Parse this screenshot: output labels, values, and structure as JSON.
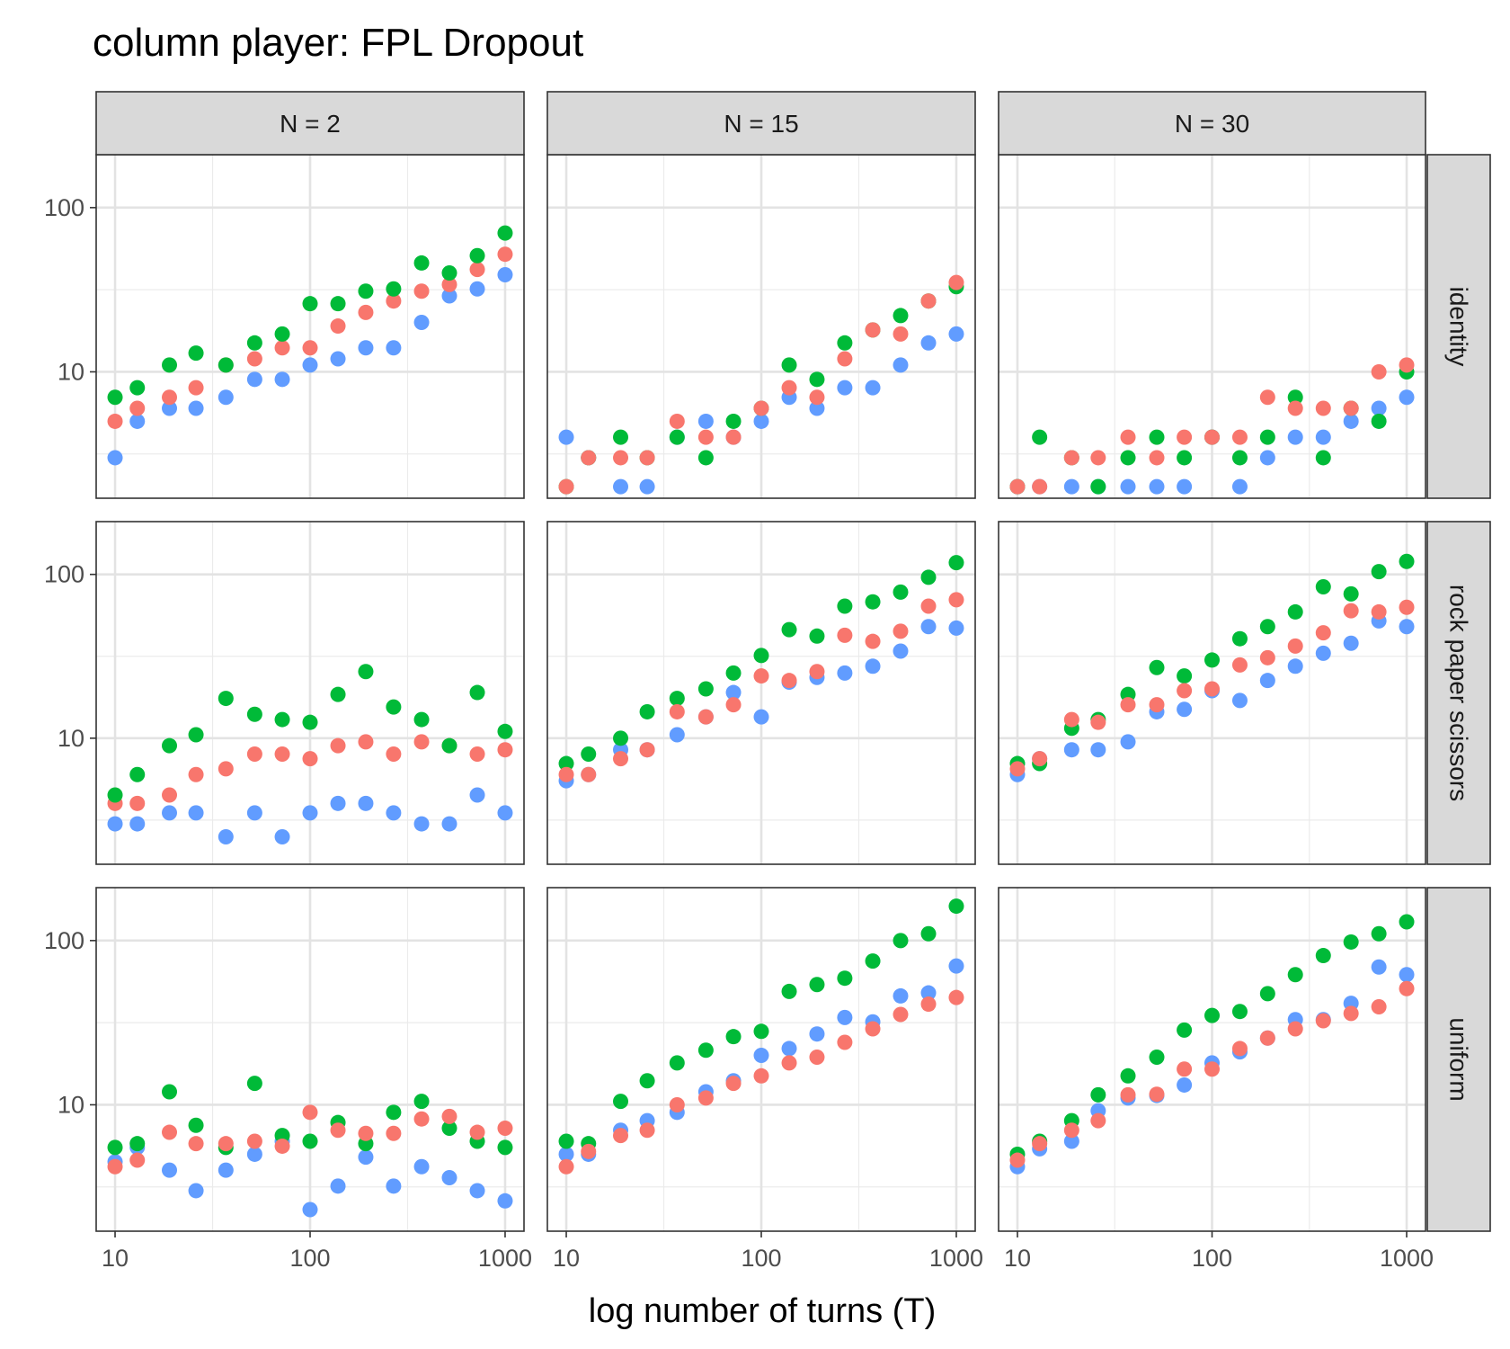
{
  "chart_data": {
    "type": "scatter",
    "title": "column player: FPL Dropout",
    "xlabel": "log number of turns (T)",
    "ylabel": "",
    "x_scale": "log10",
    "y_scale": "log10",
    "x_ticks": [
      "10",
      "100",
      "1000"
    ],
    "y_ticks": [
      "10",
      "100"
    ],
    "xlim": [
      8,
      1250
    ],
    "grid": true,
    "legend": "none",
    "col_facets": [
      "N = 2",
      "N = 15",
      "N = 30"
    ],
    "row_facets": [
      "identity",
      "rock paper scissors",
      "uniform"
    ],
    "row_ylims": [
      [
        1.7,
        210
      ],
      [
        1.7,
        210
      ],
      [
        1.7,
        210
      ]
    ],
    "series_colors": [
      "#F8766D",
      "#00BA38",
      "#619CFF"
    ],
    "x": [
      10,
      13,
      19,
      26,
      37,
      52,
      72,
      100,
      139,
      193,
      268,
      373,
      518,
      720,
      1000
    ],
    "panels": [
      {
        "row": 0,
        "col": 0,
        "series": [
          {
            "color": "#619CFF",
            "values": [
              3,
              5,
              6,
              6,
              7,
              9,
              9,
              11,
              12,
              14,
              14,
              20,
              29,
              32,
              39
            ]
          },
          {
            "color": "#F8766D",
            "values": [
              5,
              6,
              7,
              8,
              11,
              12,
              14,
              14,
              19,
              23,
              27,
              31,
              34,
              42,
              52
            ]
          },
          {
            "color": "#00BA38",
            "values": [
              7,
              8,
              11,
              13,
              11,
              15,
              17,
              26,
              26,
              31,
              32,
              46,
              40,
              51,
              70
            ]
          }
        ]
      },
      {
        "row": 0,
        "col": 1,
        "series": [
          {
            "color": "#619CFF",
            "values": [
              4,
              3,
              2,
              2,
              4,
              5,
              4,
              5,
              7,
              6,
              8,
              8,
              11,
              15,
              17
            ]
          },
          {
            "color": "#00BA38",
            "values": [
              2,
              3,
              4,
              3,
              4,
              3,
              5,
              6,
              11,
              9,
              15,
              18,
              22,
              27,
              33
            ]
          },
          {
            "color": "#F8766D",
            "values": [
              2,
              3,
              3,
              3,
              5,
              4,
              4,
              6,
              8,
              7,
              12,
              18,
              17,
              27,
              35
            ]
          }
        ]
      },
      {
        "row": 0,
        "col": 2,
        "series": [
          {
            "color": "#619CFF",
            "values": [
              2,
              2,
              2,
              2,
              2,
              2,
              2,
              4,
              2,
              3,
              4,
              4,
              5,
              6,
              7
            ]
          },
          {
            "color": "#00BA38",
            "values": [
              2,
              4,
              3,
              2,
              3,
              4,
              3,
              4,
              3,
              4,
              7,
              3,
              6,
              5,
              10
            ]
          },
          {
            "color": "#F8766D",
            "values": [
              2,
              2,
              3,
              3,
              4,
              3,
              4,
              4,
              4,
              7,
              6,
              6,
              6,
              10,
              11
            ]
          }
        ]
      },
      {
        "row": 1,
        "col": 0,
        "series": [
          {
            "color": "#619CFF",
            "values": [
              3,
              3,
              3.5,
              3.5,
              2.5,
              3.5,
              2.5,
              3.5,
              4,
              4,
              3.5,
              3,
              3,
              4.5,
              3.5
            ]
          },
          {
            "color": "#F8766D",
            "values": [
              4,
              4,
              4.5,
              6,
              6.5,
              8,
              8,
              7.5,
              9,
              9.5,
              8,
              9.5,
              9,
              8,
              8.5
            ]
          },
          {
            "color": "#00BA38",
            "values": [
              4.5,
              6,
              9,
              10.5,
              17.5,
              14,
              13,
              12.5,
              18.5,
              25.5,
              15.5,
              13,
              9,
              19,
              11
            ]
          }
        ]
      },
      {
        "row": 1,
        "col": 1,
        "series": [
          {
            "color": "#619CFF",
            "values": [
              5.5,
              6,
              8.5,
              8.5,
              10.5,
              13.5,
              19,
              13.5,
              22,
              23.5,
              25,
              27.5,
              34,
              48,
              47
            ]
          },
          {
            "color": "#00BA38",
            "values": [
              7,
              8,
              10,
              14.5,
              17.5,
              20,
              25,
              32,
              46,
              42,
              64,
              68,
              78,
              96,
              118
            ]
          },
          {
            "color": "#F8766D",
            "values": [
              6,
              6,
              7.5,
              8.5,
              14.5,
              13.5,
              16,
              24,
              22.5,
              25.5,
              42.5,
              39,
              45,
              64,
              70
            ]
          }
        ]
      },
      {
        "row": 1,
        "col": 2,
        "series": [
          {
            "color": "#619CFF",
            "values": [
              6,
              7.5,
              8.5,
              8.5,
              9.5,
              14.5,
              15,
              19.5,
              17,
              22.5,
              27.5,
              33,
              38,
              52,
              48
            ]
          },
          {
            "color": "#00BA38",
            "values": [
              7,
              7,
              11.5,
              13,
              18.5,
              27,
              24,
              30,
              40.5,
              48,
              59,
              84,
              76,
              104,
              120
            ]
          },
          {
            "color": "#F8766D",
            "values": [
              6.5,
              7.5,
              13,
              12.5,
              16,
              16,
              19.5,
              20,
              28,
              31,
              36.5,
              44,
              60,
              59,
              63
            ]
          }
        ]
      },
      {
        "row": 2,
        "col": 0,
        "series": [
          {
            "color": "#619CFF",
            "values": [
              4.5,
              5.5,
              4,
              3,
              4,
              5,
              6,
              2.3,
              3.2,
              4.8,
              3.2,
              4.2,
              3.6,
              3,
              2.6
            ]
          },
          {
            "color": "#00BA38",
            "values": [
              5.5,
              5.8,
              12,
              7.5,
              5.5,
              13.5,
              6.5,
              6,
              7.8,
              5.8,
              9,
              10.5,
              7.2,
              6,
              5.5
            ]
          },
          {
            "color": "#F8766D",
            "values": [
              4.2,
              4.6,
              6.8,
              5.8,
              5.8,
              6,
              5.6,
              9,
              7,
              6.7,
              6.7,
              8.2,
              8.5,
              6.8,
              7.2
            ]
          }
        ]
      },
      {
        "row": 2,
        "col": 1,
        "series": [
          {
            "color": "#619CFF",
            "values": [
              5,
              5,
              7,
              8,
              9,
              12,
              14,
              20,
              22,
              27,
              34,
              32,
              46,
              48,
              70
            ]
          },
          {
            "color": "#00BA38",
            "values": [
              6,
              5.8,
              10.5,
              14,
              18,
              21.5,
              26,
              28,
              49,
              54,
              59,
              75,
              100,
              110,
              162
            ]
          },
          {
            "color": "#F8766D",
            "values": [
              4.2,
              5.2,
              6.5,
              7,
              10,
              11,
              13.5,
              15,
              18,
              19.5,
              24,
              29,
              35.5,
              41,
              45
            ]
          }
        ]
      },
      {
        "row": 2,
        "col": 2,
        "series": [
          {
            "color": "#619CFF",
            "values": [
              4.2,
              5.4,
              6,
              9.2,
              11,
              11.4,
              13.2,
              18,
              21,
              25.5,
              33,
              33,
              41.5,
              69,
              62
            ]
          },
          {
            "color": "#00BA38",
            "values": [
              5,
              6,
              8,
              11.5,
              15,
              19.5,
              28.5,
              35,
              37,
              47.5,
              62,
              81,
              98,
              110,
              130
            ]
          },
          {
            "color": "#F8766D",
            "values": [
              4.6,
              5.8,
              7,
              8,
              11.5,
              11.6,
              16.5,
              16.5,
              22,
              25.5,
              29,
              32.5,
              36,
              39.5,
              51
            ]
          }
        ]
      }
    ]
  }
}
